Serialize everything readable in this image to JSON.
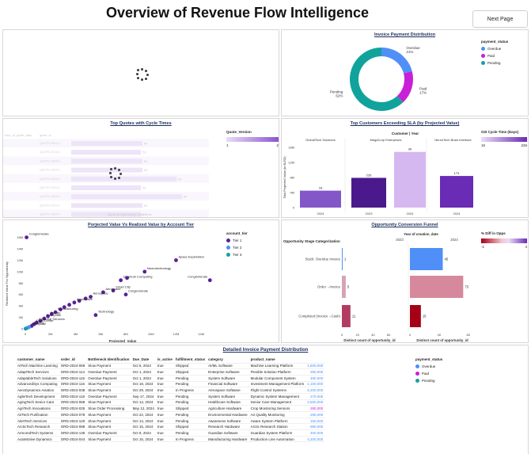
{
  "page": {
    "title": "Overview of Revenue Flow Intelligence",
    "next_button": "Next Page"
  },
  "colors": {
    "overdue": "#4f8ff7",
    "paid": "#c81fd8",
    "pending": "#10a39b",
    "accent_purple": "#6a2bb5"
  },
  "invoice_distribution": {
    "title": "Invoice Payment Distribution",
    "legend_title": "payment_status",
    "legend": [
      "Overdue",
      "Paid",
      "Pending"
    ],
    "chart_data": {
      "type": "pie",
      "slices": [
        {
          "label": "Overdue",
          "pct": 21
        },
        {
          "label": "Paid",
          "pct": 17
        },
        {
          "label": "Pending",
          "pct": 62
        }
      ],
      "slice_labels": [
        "Overdue\n21%",
        "Paid\n17%",
        "Pending\n62%"
      ]
    }
  },
  "top_quotes": {
    "title": "Top Quotes with Cycle Times",
    "legend_title": "Quote_Version",
    "legend_min": "1",
    "legend_max": "2",
    "col1": "hour_of_quote_date",
    "col2": "quote_id",
    "row_label": "QUOTE-2024-0..",
    "bar_vals": [
      "54",
      "53",
      "54",
      "54",
      "80",
      "53",
      "84",
      "54",
      "53"
    ],
    "xlabel": "Quote-to-Opportunity Cycle Time"
  },
  "top_customers": {
    "title": "Top Customers Exceeding SLA (by Projected Value)",
    "legend_title": "O2I Cycle Time (Days)",
    "legend_min": "16",
    "legend_max": "226",
    "header": "Customer | Year",
    "ylabel": "Total Projected Value (in $USD)",
    "chart_data": {
      "type": "bar",
      "groups": [
        "GlobalTech Solutions",
        "MegaCorp Enterprises",
        "NeuroTech Brain Interface"
      ],
      "categories": [
        "2024",
        "2023",
        "2024",
        "2024"
      ],
      "values": [
        4.5,
        7.9,
        14.8,
        8.4
      ],
      "labels": [
        "16",
        "226",
        "39",
        "173"
      ],
      "yticks": [
        "0",
        "4M",
        "8M",
        "12M",
        "16M"
      ],
      "ylim": [
        0,
        16
      ]
    }
  },
  "projected_realized": {
    "title": "Porjected Value Vs Realized Value by Account Tier",
    "legend_title": "account_tier",
    "legend": [
      "Tier 1",
      "Tier 2",
      "Tier 3"
    ],
    "xlabel": "Projected_Value",
    "ylabel": "Realized Value For Opportunity",
    "chart_data": {
      "type": "scatter",
      "xticks": [
        "0",
        "2M",
        "4M",
        "6M",
        "8M",
        "10M",
        "12M",
        "14M"
      ],
      "yticks": [
        "0",
        "2M",
        "4M",
        "6M",
        "8M",
        "10M",
        "12M",
        "14M",
        "16M"
      ],
      "xlim": [
        0,
        15.5
      ],
      "ylim": [
        0,
        16.5
      ],
      "points": [
        {
          "x": 0.1,
          "y": 16,
          "label": "Conglomerate"
        },
        {
          "x": 14.7,
          "y": 8.5,
          "label": "Conglomerate"
        },
        {
          "x": 12,
          "y": 12,
          "label": "Space Exploration"
        },
        {
          "x": 9.5,
          "y": 10,
          "label": "Neurotechnology"
        },
        {
          "x": 7.6,
          "y": 8.5,
          "label": "Quantum Computing"
        },
        {
          "x": 8.1,
          "y": 8.9,
          "label": ""
        },
        {
          "x": 7.0,
          "y": 6.7,
          "label": "Smart City"
        },
        {
          "x": 8.0,
          "y": 6.0,
          "label": "Conglomerate"
        },
        {
          "x": 6.2,
          "y": 6.4,
          "label": "Aerospace"
        },
        {
          "x": 5.2,
          "y": 5.6,
          "label": "Aerospace"
        },
        {
          "x": 4.8,
          "y": 5.3,
          "label": ""
        },
        {
          "x": 4.3,
          "y": 4.9,
          "label": ""
        },
        {
          "x": 3.9,
          "y": 4.6,
          "label": "Automotive"
        },
        {
          "x": 3.5,
          "y": 4.2,
          "label": ""
        },
        {
          "x": 3.1,
          "y": 3.8,
          "label": ""
        },
        {
          "x": 2.8,
          "y": 3.4,
          "label": ""
        },
        {
          "x": 2.4,
          "y": 2.9,
          "label": "Manufacturing"
        },
        {
          "x": 2.1,
          "y": 2.6,
          "label": ""
        },
        {
          "x": 5.6,
          "y": 2.4,
          "label": "Technology"
        },
        {
          "x": 1.8,
          "y": 2.2,
          "label": "Energy"
        },
        {
          "x": 1.5,
          "y": 1.8,
          "label": "Enterprise"
        },
        {
          "x": 1.2,
          "y": 1.4,
          "label": ""
        },
        {
          "x": 0.9,
          "y": 1.1,
          "label": "Financial Services"
        },
        {
          "x": 0.7,
          "y": 0.8,
          "label": "Data Center"
        },
        {
          "x": 0.5,
          "y": 0.5,
          "label": "Energy"
        },
        {
          "x": 0.3,
          "y": 0.3,
          "label": "Enterprise"
        },
        {
          "x": 0.15,
          "y": 0.15,
          "label": ""
        },
        {
          "x": 0.05,
          "y": 0.05,
          "label": ""
        }
      ]
    }
  },
  "funnel": {
    "title": "Opportunity Conversion Funnel",
    "year_title": "Year of creation_date",
    "years": [
      "2023",
      "2024"
    ],
    "stage_title": "Opportunity Stage Categorization",
    "legend_title": "% Diff in Opps",
    "legend_min": "-1",
    "legend_max": "4",
    "xlabel": "Distinct count of opportunity_id",
    "chart_data": {
      "type": "bar",
      "categories": [
        "Stuck: Overdue Invoice",
        "Order→Invoice",
        "Completed (Invoice→Cash)"
      ],
      "series": [
        {
          "name": "2023",
          "values": [
            1,
            5,
            11
          ]
        },
        {
          "name": "2024",
          "values": [
            45,
            73,
            15
          ]
        }
      ],
      "xticks_2023": [
        "0",
        "20",
        "40",
        "60"
      ],
      "xticks_2024": [
        "0",
        "40",
        "80"
      ]
    }
  },
  "detail_table": {
    "title": "Detailed Invoice Payment Distribution",
    "legend_title": "payment_status",
    "legend": [
      "Overdue",
      "Paid",
      "Pending"
    ],
    "columns": [
      "customer_name",
      "order_id",
      "Bottleneck Identification",
      "Due_Date",
      "is_active",
      "fulfillment_status",
      "category",
      "product_name",
      ""
    ],
    "rows": [
      [
        "AITech Machine Learning",
        "ORD-2024-069",
        "Slow Payment",
        "Oct 5, 2024",
        "true",
        "Shipped",
        "AI/ML Software",
        "Machine Learning Platform",
        "1,600,000",
        "o"
      ],
      [
        "AdaptTech Services",
        "ORD-2024-114",
        "Overdue Payment",
        "Oct 1, 2024",
        "true",
        "Shipped",
        "Enterprise Software",
        "Flexible Solution Platform",
        "280,000",
        "o"
      ],
      [
        "AdaptableTech Solutions",
        "ORD-2024-115",
        "Overdue Payment",
        "Oct 1, 2024",
        "true",
        "Pending",
        "System Software",
        "Modular Component System",
        "490,000",
        "o"
      ],
      [
        "AdvancedSys Computing",
        "ORD-2024-116",
        "Slow Payment",
        "Oct 18, 2024",
        "true",
        "Pending",
        "Financial Software",
        "Investment Management Platform",
        "1,150,000",
        "o"
      ],
      [
        "AeroDynamics Aviation",
        "ORD-2024-038",
        "Slow Payment",
        "Oct 29, 2024",
        "true",
        "In Progress",
        "Aerospace Software",
        "Flight Control Systems",
        "5,200,000",
        "o"
      ],
      [
        "AgileTech Development",
        "ORD-2024-118",
        "Overdue Payment",
        "Sep 17, 2024",
        "true",
        "Pending",
        "System Software",
        "Dynamic System Management",
        "270,000",
        "o"
      ],
      [
        "AgingTech Senior Care",
        "ORD-2024-068",
        "Slow Payment",
        "Oct 14, 2024",
        "true",
        "Pending",
        "Healthcare Software",
        "Senior Care Management",
        "2,500,000",
        "o"
      ],
      [
        "AgriTech Innovations",
        "ORD-2024-025",
        "Slow Order Processing",
        "May 12, 2024",
        "true",
        "Shipped",
        "Agriculture Hardware",
        "Crop Monitoring Sensors",
        "280,000",
        "p"
      ],
      [
        "AirTech Purification",
        "ORD-2024-078",
        "Slow Payment",
        "Oct 22, 2024",
        "true",
        "Pending",
        "Environmental Hardware",
        "Air Quality Monitoring",
        "290,000",
        "o"
      ],
      [
        "AlertTech Services",
        "ORD-2024-120",
        "Slow Payment",
        "Oct 14, 2024",
        "true",
        "Pending",
        "Awareness Software",
        "Aware System Platform",
        "160,000",
        "o"
      ],
      [
        "ArcticTech Research",
        "ORD-2024-088",
        "Slow Payment",
        "Oct 15, 2024",
        "true",
        "Shipped",
        "Research Hardware",
        "Arctic Research Station",
        "980,000",
        "o"
      ],
      [
        "ArmoredTech Systems",
        "ORD-2024-136",
        "Overdue Payment",
        "Oct 9, 2024",
        "true",
        "Pending",
        "Guardian Software",
        "Guardian System Platform",
        "400,000",
        "o"
      ],
      [
        "AutoMotive Dynamics",
        "ORD-2024-044",
        "Slow Payment",
        "Oct 15, 2024",
        "true",
        "In Progress",
        "Manufacturing Hardware",
        "Production Line Automation",
        "4,200,000",
        "o"
      ]
    ]
  }
}
